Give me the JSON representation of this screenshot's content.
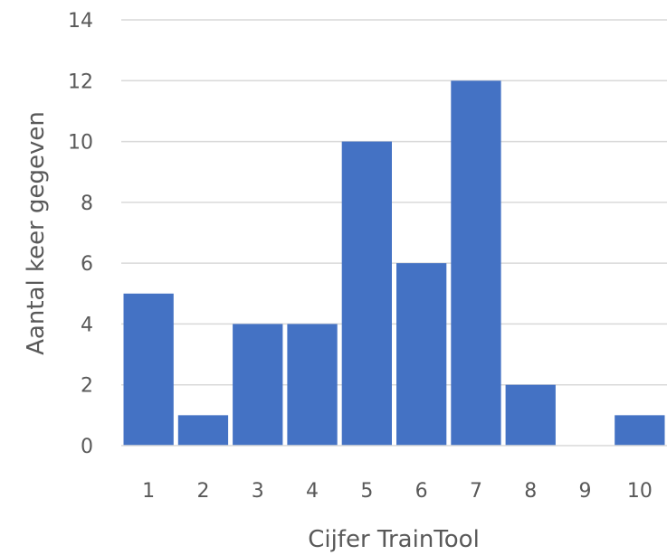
{
  "chart_data": {
    "type": "bar",
    "categories": [
      "1",
      "2",
      "3",
      "4",
      "5",
      "6",
      "7",
      "8",
      "9",
      "10"
    ],
    "values": [
      5,
      1,
      4,
      4,
      10,
      6,
      12,
      2,
      0,
      1
    ],
    "xlabel": "Cijfer TrainTool",
    "ylabel": "Aantal keer  gegeven",
    "ylim": [
      0,
      14
    ],
    "yticks": [
      "0",
      "2",
      "4",
      "6",
      "8",
      "10",
      "12",
      "14"
    ],
    "grid": true,
    "bar_color": "#4472c4"
  }
}
